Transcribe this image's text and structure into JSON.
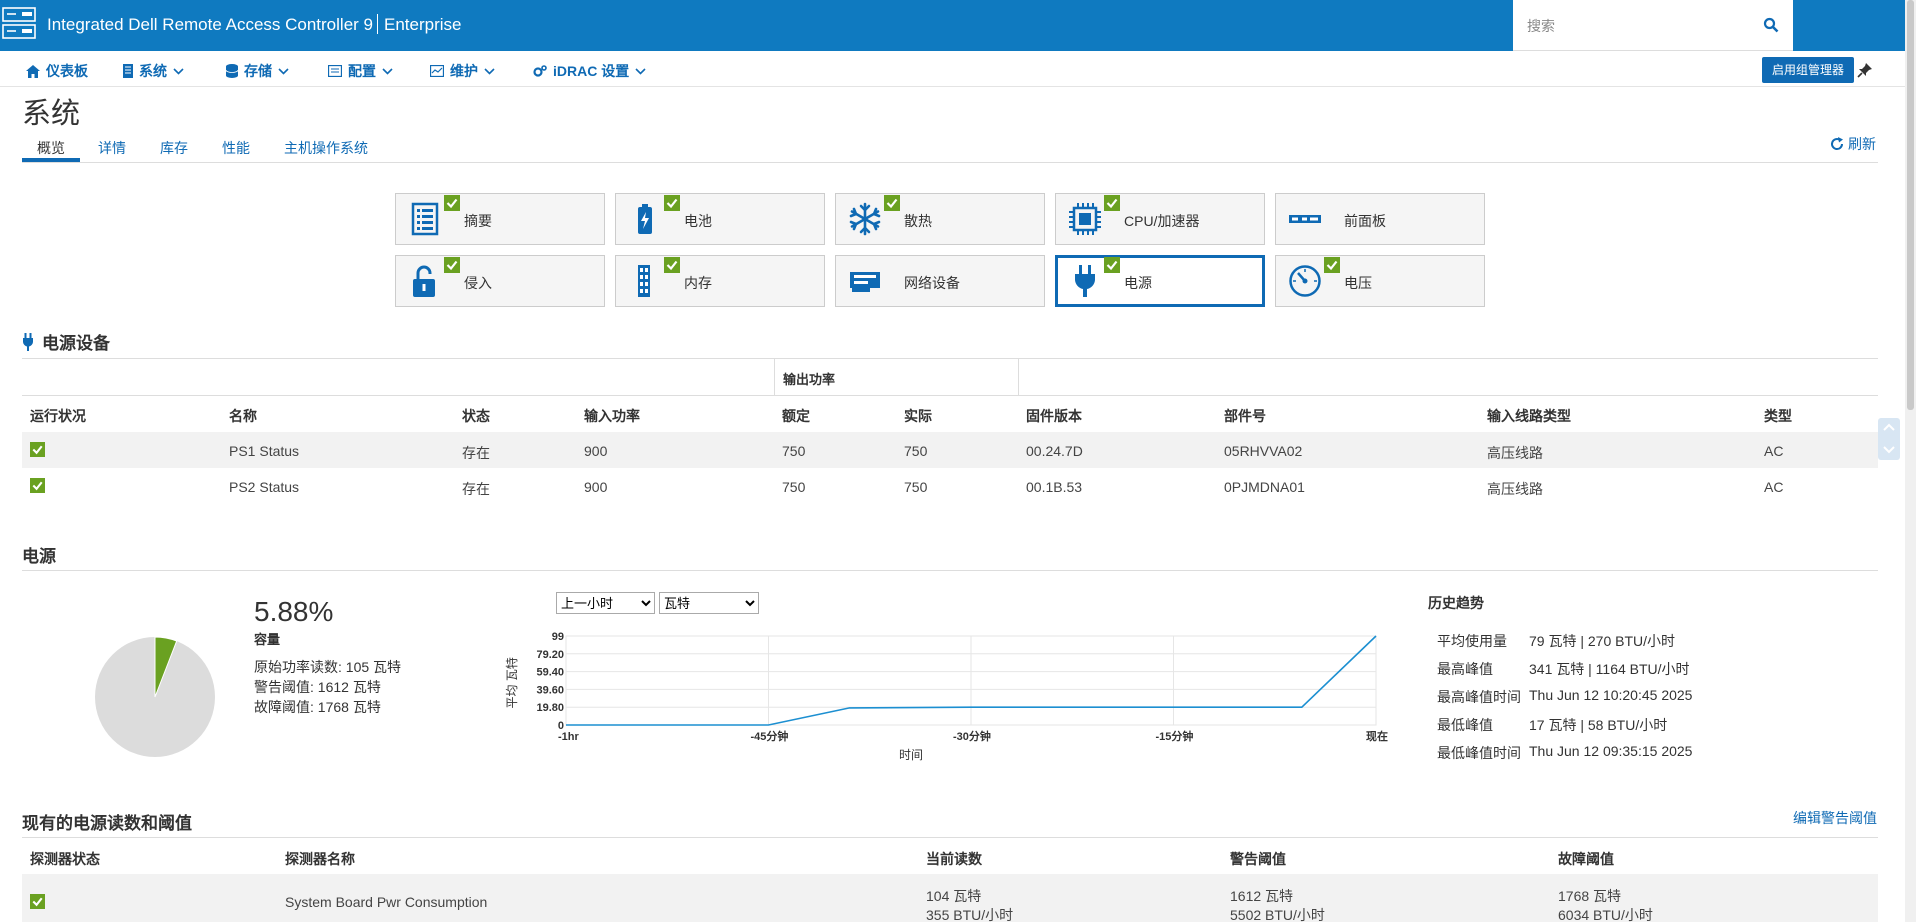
{
  "app": {
    "title": "Integrated Dell Remote Access Controller 9",
    "edition": "Enterprise",
    "search_placeholder": "搜索"
  },
  "nav": {
    "items": [
      {
        "label": "仪表板"
      },
      {
        "label": "系统"
      },
      {
        "label": "存储"
      },
      {
        "label": "配置"
      },
      {
        "label": "维护"
      },
      {
        "label": "iDRAC 设置"
      }
    ],
    "group_manager_button": "启用组管理器"
  },
  "page": {
    "title": "系统",
    "tabs": [
      "概览",
      "详情",
      "库存",
      "性能",
      "主机操作系统"
    ],
    "active_tab": "概览",
    "refresh_label": "刷新"
  },
  "tiles": [
    {
      "label": "摘要",
      "icon": "summary-icon"
    },
    {
      "label": "电池",
      "icon": "battery-icon"
    },
    {
      "label": "散热",
      "icon": "snowflake-icon"
    },
    {
      "label": "CPU/加速器",
      "icon": "cpu-icon"
    },
    {
      "label": "前面板",
      "icon": "front-panel-icon"
    },
    {
      "label": "侵入",
      "icon": "unlock-icon"
    },
    {
      "label": "内存",
      "icon": "memory-icon"
    },
    {
      "label": "网络设备",
      "icon": "network-card-icon"
    },
    {
      "label": "电源",
      "icon": "plug-icon",
      "selected": true
    },
    {
      "label": "电压",
      "icon": "gauge-icon"
    }
  ],
  "psu": {
    "section_title": "电源设备",
    "group_header": "输出功率",
    "columns": [
      "运行状况",
      "名称",
      "状态",
      "输入功率",
      "额定",
      "实际",
      "固件版本",
      "部件号",
      "输入线路类型",
      "类型"
    ],
    "rows": [
      {
        "name": "PS1 Status",
        "state": "存在",
        "input": "900",
        "rated": "750",
        "actual": "750",
        "firmware": "00.24.7D",
        "part": "05RHVVA02",
        "line": "高压线路",
        "type": "AC"
      },
      {
        "name": "PS2 Status",
        "state": "存在",
        "input": "900",
        "rated": "750",
        "actual": "750",
        "firmware": "00.1B.53",
        "part": "0PJMDNA01",
        "line": "高压线路",
        "type": "AC"
      }
    ]
  },
  "power": {
    "section_title": "电源",
    "capacity_pct": "5.88%",
    "capacity_label": "容量",
    "capacity_fraction": 0.0588,
    "raw_reading": "原始功率读数: 105 瓦特",
    "warn_threshold": "警告阈值: 1612 瓦特",
    "fail_threshold": "故障阈值: 1768 瓦特",
    "range_select": "上一小时",
    "unit_select": "瓦特",
    "history_title": "历史趋势",
    "history": [
      {
        "k": "平均使用量",
        "v": "79 瓦特 | 270 BTU/小时"
      },
      {
        "k": "最高峰值",
        "v": "341 瓦特 | 1164 BTU/小时"
      },
      {
        "k": "最高峰值时间",
        "v": "Thu Jun 12 10:20:45 2025"
      },
      {
        "k": "最低峰值",
        "v": "17 瓦特 | 58 BTU/小时"
      },
      {
        "k": "最低峰值时间",
        "v": "Thu Jun 12 09:35:15 2025"
      }
    ]
  },
  "chart_data": {
    "type": "line",
    "ylabel": "平均 瓦特",
    "xlabel": "时间",
    "ylim": [
      0,
      99
    ],
    "yticks": [
      "99",
      "79.20",
      "59.40",
      "39.60",
      "19.80",
      "0"
    ],
    "xticks": [
      "-1hr",
      "-45分钟",
      "-30分钟",
      "-15分钟",
      "现在"
    ],
    "x": [
      -60,
      -45,
      -39,
      -30,
      -15,
      -5.5,
      0
    ],
    "series": [
      {
        "values": [
          0,
          0,
          19,
          19.8,
          19.8,
          19.8,
          99
        ]
      }
    ],
    "grid": true,
    "color": "#1c8fd1"
  },
  "sensors": {
    "section_title": "现有的电源读数和阈值",
    "edit_link": "编辑警告阈值",
    "columns": [
      "探测器状态",
      "探测器名称",
      "当前读数",
      "警告阈值",
      "故障阈值"
    ],
    "rows": [
      {
        "name": "System Board Pwr Consumption",
        "reading1": "104 瓦特",
        "reading2": "355 BTU/小时",
        "warn1": "1612 瓦特",
        "warn2": "5502 BTU/小时",
        "fail1": "1768 瓦特",
        "fail2": "6034 BTU/小时"
      }
    ]
  },
  "colors": {
    "brand": "#0f7ac0",
    "link": "#0f6ab4",
    "ok": "#6aa121",
    "line": "#1c8fd1"
  }
}
